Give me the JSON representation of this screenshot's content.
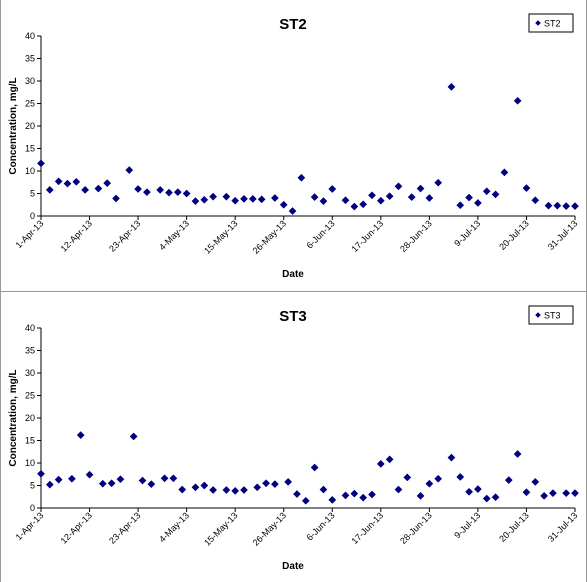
{
  "charts": [
    {
      "chart_data": {
        "type": "scatter",
        "title": "ST2",
        "xlabel": "Date",
        "ylabel": "Concentration, mg/L",
        "ylim": [
          0,
          40
        ],
        "yticks": [
          "0",
          "5",
          "10",
          "15",
          "20",
          "25",
          "30",
          "35",
          "40"
        ],
        "xlim": [
          "2013-04-01",
          "2013-07-31"
        ],
        "xticks": [
          "1-Apr-13",
          "12-Apr-13",
          "23-Apr-13",
          "4-May-13",
          "15-May-13",
          "26-May-13",
          "6-Jun-13",
          "17-Jun-13",
          "28-Jun-13",
          "9-Jul-13",
          "20-Jul-13",
          "31-Jul-13"
        ],
        "grid": false,
        "legend": "top-right",
        "series": [
          {
            "name": "ST2",
            "color": "#000080",
            "marker": "diamond",
            "x": [
              "2013-04-01",
              "2013-04-03",
              "2013-04-05",
              "2013-04-07",
              "2013-04-09",
              "2013-04-11",
              "2013-04-14",
              "2013-04-16",
              "2013-04-18",
              "2013-04-21",
              "2013-04-23",
              "2013-04-25",
              "2013-04-28",
              "2013-04-30",
              "2013-05-02",
              "2013-05-04",
              "2013-05-06",
              "2013-05-08",
              "2013-05-10",
              "2013-05-13",
              "2013-05-15",
              "2013-05-17",
              "2013-05-19",
              "2013-05-21",
              "2013-05-24",
              "2013-05-26",
              "2013-05-28",
              "2013-05-30",
              "2013-06-02",
              "2013-06-04",
              "2013-06-06",
              "2013-06-09",
              "2013-06-11",
              "2013-06-13",
              "2013-06-15",
              "2013-06-17",
              "2013-06-19",
              "2013-06-21",
              "2013-06-24",
              "2013-06-26",
              "2013-06-28",
              "2013-06-30",
              "2013-07-03",
              "2013-07-05",
              "2013-07-07",
              "2013-07-09",
              "2013-07-11",
              "2013-07-13",
              "2013-07-15",
              "2013-07-18",
              "2013-07-20",
              "2013-07-22",
              "2013-07-25",
              "2013-07-27",
              "2013-07-29",
              "2013-07-31"
            ],
            "y": [
              11.7,
              5.8,
              7.7,
              7.2,
              7.6,
              5.8,
              6.1,
              7.3,
              3.9,
              10.2,
              6.0,
              5.3,
              5.8,
              5.2,
              5.3,
              5.0,
              3.3,
              3.6,
              4.3,
              4.3,
              3.4,
              3.8,
              3.8,
              3.7,
              4.0,
              2.5,
              1.1,
              8.5,
              4.2,
              3.3,
              6.0,
              3.5,
              2.1,
              2.6,
              4.6,
              3.4,
              4.4,
              6.6,
              4.2,
              6.1,
              4.0,
              7.4,
              28.7,
              2.4,
              4.1,
              2.9,
              5.5,
              4.8,
              9.7,
              25.6,
              6.2,
              3.5,
              2.3,
              2.3,
              2.2,
              2.2
            ]
          }
        ]
      }
    },
    {
      "chart_data": {
        "type": "scatter",
        "title": "ST3",
        "xlabel": "Date",
        "ylabel": "Concentration, mg/L",
        "ylim": [
          0,
          40
        ],
        "yticks": [
          "0",
          "5",
          "10",
          "15",
          "20",
          "25",
          "30",
          "35",
          "40"
        ],
        "xlim": [
          "2013-04-01",
          "2013-07-31"
        ],
        "xticks": [
          "1-Apr-13",
          "12-Apr-13",
          "23-Apr-13",
          "4-May-13",
          "15-May-13",
          "26-May-13",
          "6-Jun-13",
          "17-Jun-13",
          "28-Jun-13",
          "9-Jul-13",
          "20-Jul-13",
          "31-Jul-13"
        ],
        "grid": false,
        "legend": "top-right",
        "series": [
          {
            "name": "ST3",
            "color": "#000080",
            "marker": "diamond",
            "x": [
              "2013-04-01",
              "2013-04-03",
              "2013-04-05",
              "2013-04-08",
              "2013-04-10",
              "2013-04-12",
              "2013-04-15",
              "2013-04-17",
              "2013-04-19",
              "2013-04-22",
              "2013-04-24",
              "2013-04-26",
              "2013-04-29",
              "2013-05-01",
              "2013-05-03",
              "2013-05-06",
              "2013-05-08",
              "2013-05-10",
              "2013-05-13",
              "2013-05-15",
              "2013-05-17",
              "2013-05-20",
              "2013-05-22",
              "2013-05-24",
              "2013-05-27",
              "2013-05-29",
              "2013-05-31",
              "2013-06-02",
              "2013-06-04",
              "2013-06-06",
              "2013-06-09",
              "2013-06-11",
              "2013-06-13",
              "2013-06-15",
              "2013-06-17",
              "2013-06-19",
              "2013-06-21",
              "2013-06-23",
              "2013-06-26",
              "2013-06-28",
              "2013-06-30",
              "2013-07-03",
              "2013-07-05",
              "2013-07-07",
              "2013-07-09",
              "2013-07-11",
              "2013-07-13",
              "2013-07-16",
              "2013-07-18",
              "2013-07-20",
              "2013-07-22",
              "2013-07-24",
              "2013-07-26",
              "2013-07-29",
              "2013-07-31"
            ],
            "y": [
              7.6,
              5.2,
              6.3,
              6.5,
              16.2,
              7.4,
              5.4,
              5.5,
              6.4,
              15.9,
              6.1,
              5.3,
              6.6,
              6.6,
              4.1,
              4.6,
              5.0,
              4.0,
              4.0,
              3.8,
              4.0,
              4.6,
              5.5,
              5.3,
              5.8,
              3.1,
              1.6,
              9.0,
              4.1,
              1.8,
              2.8,
              3.2,
              2.3,
              3.0,
              9.8,
              10.8,
              4.1,
              6.8,
              2.7,
              5.4,
              6.5,
              11.2,
              6.9,
              3.6,
              4.2,
              2.1,
              2.4,
              6.2,
              12.0,
              3.5,
              5.8,
              2.7,
              3.3,
              3.3,
              3.3
            ]
          }
        ]
      }
    }
  ]
}
